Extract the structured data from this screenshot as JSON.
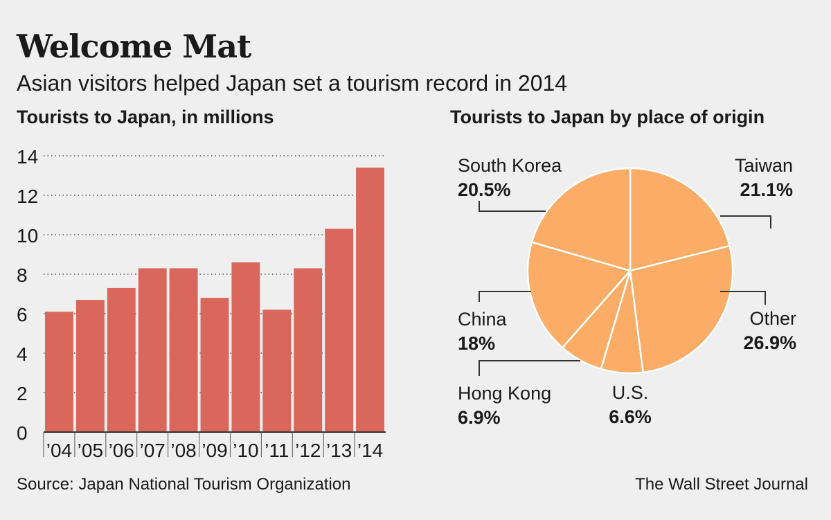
{
  "title": "Welcome Mat",
  "subtitle": "Asian visitors helped Japan set a tourism record in 2014",
  "source": "Source: Japan National Tourism Organization",
  "credit": "The Wall Street Journal",
  "colors": {
    "bar": "#d9675c",
    "pie": "#fbad67",
    "background": "#efefef"
  },
  "chart_data": [
    {
      "type": "bar",
      "title": "Tourists to Japan, in millions",
      "categories": [
        "’04",
        "’05",
        "’06",
        "’07",
        "’08",
        "’09",
        "’10",
        "’11",
        "’12",
        "’13",
        "’14"
      ],
      "values": [
        6.1,
        6.7,
        7.3,
        8.3,
        8.3,
        6.8,
        8.6,
        6.2,
        8.3,
        10.3,
        13.4
      ],
      "ylim": [
        0,
        14
      ],
      "yticks": [
        0,
        2,
        4,
        6,
        8,
        10,
        12,
        14
      ],
      "grid": true
    },
    {
      "type": "pie",
      "title": "Tourists to Japan by place of origin",
      "slices": [
        {
          "label": "Taiwan",
          "value": 21.1,
          "display": "21.1%"
        },
        {
          "label": "Other",
          "value": 26.9,
          "display": "26.9%"
        },
        {
          "label": "U.S.",
          "value": 6.6,
          "display": "6.6%"
        },
        {
          "label": "Hong Kong",
          "value": 6.9,
          "display": "6.9%"
        },
        {
          "label": "China",
          "value": 18,
          "display": "18%"
        },
        {
          "label": "South Korea",
          "value": 20.5,
          "display": "20.5%"
        }
      ]
    }
  ]
}
